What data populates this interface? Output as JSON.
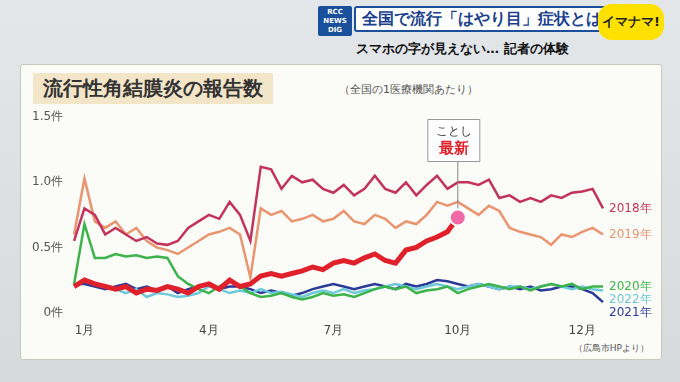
{
  "header": {
    "logo": "RCC NEWS DIG",
    "headline": "全国で流行「はやり目」症状とは",
    "subheadline": "スマホの字が見えない… 記者の体験",
    "badge": "イマナマ!"
  },
  "chart_data": {
    "type": "line",
    "title": "流行性角結膜炎の報告数",
    "subtitle": "（全国の1医療機関あたり）",
    "source": "（広島市HPより）",
    "categories": [
      null,
      "1月",
      null,
      null,
      null,
      null,
      null,
      null,
      null,
      null,
      null,
      null,
      null,
      "4月",
      null,
      null,
      null,
      null,
      null,
      null,
      null,
      null,
      null,
      null,
      null,
      "7月",
      null,
      null,
      null,
      null,
      null,
      null,
      null,
      null,
      null,
      null,
      null,
      "10月",
      null,
      null,
      null,
      null,
      null,
      null,
      null,
      null,
      null,
      null,
      null,
      "12月",
      null,
      null
    ],
    "series": [
      {
        "name": "2018年",
        "color": "#c4335c",
        "values": [
          0.55,
          0.8,
          0.75,
          0.6,
          0.65,
          0.6,
          0.55,
          0.58,
          0.53,
          0.52,
          0.55,
          0.65,
          0.7,
          0.75,
          0.72,
          0.85,
          0.75,
          0.55,
          1.12,
          1.1,
          0.95,
          1.05,
          1.0,
          1.02,
          0.95,
          0.92,
          0.98,
          0.9,
          0.95,
          1.05,
          0.95,
          0.92,
          1.0,
          0.9,
          0.98,
          1.05,
          0.95,
          1.0,
          1.0,
          0.98,
          1.02,
          0.88,
          0.9,
          0.85,
          0.88,
          0.85,
          0.9,
          0.88,
          0.92,
          0.93,
          0.95,
          0.8
        ]
      },
      {
        "name": "2019年",
        "color": "#ea9470",
        "values": [
          0.6,
          1.03,
          0.7,
          0.65,
          0.7,
          0.6,
          0.65,
          0.55,
          0.5,
          0.48,
          0.45,
          0.5,
          0.55,
          0.6,
          0.62,
          0.65,
          0.6,
          0.27,
          0.8,
          0.75,
          0.78,
          0.7,
          0.72,
          0.75,
          0.7,
          0.72,
          0.78,
          0.7,
          0.68,
          0.75,
          0.72,
          0.65,
          0.7,
          0.68,
          0.75,
          0.85,
          0.82,
          0.85,
          0.8,
          0.75,
          0.82,
          0.78,
          0.65,
          0.62,
          0.6,
          0.58,
          0.52,
          0.6,
          0.58,
          0.62,
          0.65,
          0.6
        ]
      },
      {
        "name": "2020年",
        "color": "#3cb44b",
        "values": [
          0.22,
          0.68,
          0.42,
          0.42,
          0.45,
          0.43,
          0.44,
          0.42,
          0.43,
          0.42,
          0.28,
          0.22,
          0.18,
          0.15,
          0.2,
          0.25,
          0.2,
          0.15,
          0.12,
          0.13,
          0.15,
          0.12,
          0.1,
          0.12,
          0.15,
          0.13,
          0.14,
          0.12,
          0.15,
          0.18,
          0.2,
          0.18,
          0.2,
          0.15,
          0.17,
          0.18,
          0.2,
          0.15,
          0.18,
          0.2,
          0.22,
          0.2,
          0.18,
          0.2,
          0.17,
          0.2,
          0.22,
          0.2,
          0.22,
          0.18,
          0.2,
          0.2
        ]
      },
      {
        "name": "2022年",
        "color": "#6cc8da",
        "values": [
          0.2,
          0.25,
          0.22,
          0.2,
          0.18,
          0.15,
          0.18,
          0.12,
          0.15,
          0.14,
          0.12,
          0.13,
          0.15,
          0.2,
          0.18,
          0.15,
          0.17,
          0.15,
          0.18,
          0.15,
          0.16,
          0.14,
          0.12,
          0.15,
          0.17,
          0.15,
          0.18,
          0.15,
          0.17,
          0.18,
          0.2,
          0.22,
          0.2,
          0.18,
          0.2,
          0.22,
          0.2,
          0.18,
          0.2,
          0.22,
          0.2,
          0.18,
          0.2,
          0.2,
          0.18,
          0.2,
          0.22,
          0.2,
          0.18,
          0.2,
          0.18,
          0.17
        ]
      },
      {
        "name": "2021年",
        "color": "#2a3a9a",
        "values": [
          0.22,
          0.22,
          0.2,
          0.18,
          0.2,
          0.22,
          0.18,
          0.2,
          0.17,
          0.2,
          0.15,
          0.18,
          0.2,
          0.22,
          0.18,
          0.2,
          0.2,
          0.18,
          0.15,
          0.17,
          0.15,
          0.13,
          0.15,
          0.18,
          0.2,
          0.22,
          0.2,
          0.18,
          0.2,
          0.22,
          0.2,
          0.18,
          0.22,
          0.2,
          0.22,
          0.25,
          0.24,
          0.22,
          0.2,
          0.22,
          0.2,
          0.18,
          0.2,
          0.18,
          0.2,
          0.17,
          0.18,
          0.2,
          0.2,
          0.18,
          0.15,
          0.08
        ]
      },
      {
        "color": "#e0202a",
        "marker": "circle",
        "values": [
          0.2,
          0.25,
          0.22,
          0.2,
          0.18,
          0.2,
          0.15,
          0.18,
          0.17,
          0.2,
          0.18,
          0.15,
          0.2,
          0.22,
          0.18,
          0.25,
          0.2,
          0.22,
          0.28,
          0.3,
          0.28,
          0.3,
          0.32,
          0.35,
          0.33,
          0.38,
          0.4,
          0.38,
          0.42,
          0.45,
          0.4,
          0.38,
          0.48,
          0.5,
          0.55,
          0.58,
          0.62,
          0.73,
          null,
          null,
          null,
          null,
          null,
          null,
          null,
          null,
          null,
          null,
          null,
          null,
          null,
          null
        ],
        "annotation": [
          "ことし",
          "最新"
        ]
      }
    ],
    "ylim": [
      0,
      1.5
    ],
    "yticks": [
      {
        "value": 0,
        "label": "0件"
      },
      {
        "value": 0.5,
        "label": "0.5件"
      },
      {
        "value": 1.0,
        "label": "1.0件"
      },
      {
        "value": 1.5,
        "label": "1.5件"
      }
    ],
    "grid": false
  }
}
